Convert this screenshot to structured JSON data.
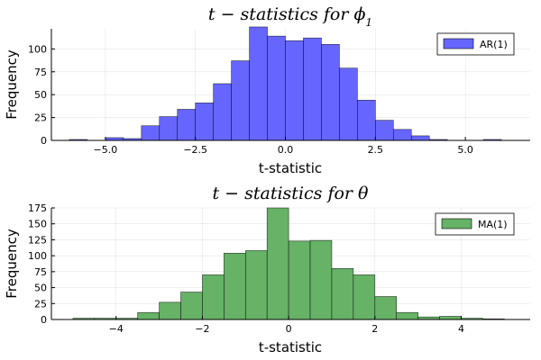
{
  "chart_data": [
    {
      "type": "bar",
      "title": "t − statistics for ϕ",
      "title_subscript": "1",
      "xlabel": "t-statistic",
      "ylabel": "Frequency",
      "xlim": [
        -6.5,
        6.8
      ],
      "ylim": [
        0,
        122
      ],
      "xticks": [
        -5.0,
        -2.5,
        0.0,
        2.5,
        5.0
      ],
      "xtick_labels": [
        "−5.0",
        "−2.5",
        "0.0",
        "2.5",
        "5.0"
      ],
      "yticks": [
        0,
        25,
        50,
        75,
        100
      ],
      "ytick_labels": [
        "0",
        "25",
        "50",
        "75",
        "100"
      ],
      "grid": true,
      "legend_position": "top-right",
      "color": "#6666ff",
      "series": [
        {
          "name": "AR(1)",
          "bin_edges": [
            -6.0,
            -5.5,
            -5.0,
            -4.5,
            -4.0,
            -3.5,
            -3.0,
            -2.5,
            -2.0,
            -1.5,
            -1.0,
            -0.5,
            0.0,
            0.5,
            1.0,
            1.5,
            2.0,
            2.5,
            3.0,
            3.5,
            4.0,
            4.5,
            5.0,
            5.5,
            6.0
          ],
          "values": [
            1,
            0,
            3,
            2,
            16,
            26,
            34,
            41,
            62,
            87,
            124,
            114,
            109,
            112,
            105,
            79,
            44,
            22,
            12,
            5,
            1,
            0,
            0,
            1
          ]
        }
      ]
    },
    {
      "type": "bar",
      "title": "t − statistics for θ",
      "xlabel": "t-statistic",
      "ylabel": "Frequency",
      "xlim": [
        -5.5,
        5.6
      ],
      "ylim": [
        0,
        175
      ],
      "xticks": [
        -4,
        -2,
        0,
        2,
        4
      ],
      "xtick_labels": [
        "−4",
        "−2",
        "0",
        "2",
        "4"
      ],
      "yticks": [
        0,
        25,
        50,
        75,
        100,
        125,
        150,
        175
      ],
      "ytick_labels": [
        "0",
        "25",
        "50",
        "75",
        "100",
        "125",
        "150",
        "175"
      ],
      "grid": true,
      "legend_position": "top-right",
      "color": "#66b266",
      "series": [
        {
          "name": "MA(1)",
          "bin_edges": [
            -5.0,
            -4.5,
            -4.0,
            -3.5,
            -3.0,
            -2.5,
            -2.0,
            -1.5,
            -1.0,
            -0.5,
            0.0,
            0.5,
            1.0,
            1.5,
            2.0,
            2.5,
            3.0,
            3.5,
            4.0,
            4.5,
            5.0
          ],
          "values": [
            2,
            2,
            2,
            11,
            27,
            43,
            70,
            104,
            108,
            175,
            123,
            124,
            80,
            70,
            36,
            11,
            4,
            5,
            2,
            1
          ]
        }
      ]
    }
  ]
}
